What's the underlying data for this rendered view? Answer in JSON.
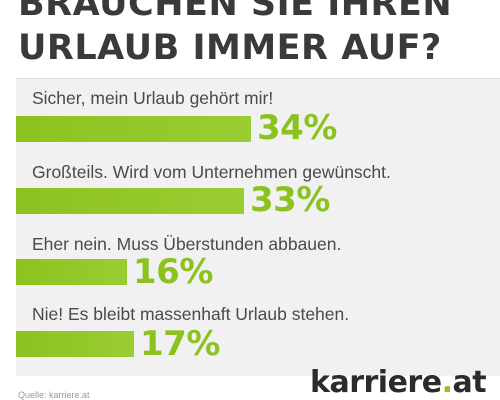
{
  "chart_data": {
    "type": "bar",
    "title": "BRAUCHEN SIE IHREN URLAUB IMMER AUF?",
    "categories": [
      "Sicher, mein Urlaub gehört mir!",
      "Großteils. Wird vom Unternehmen gewünscht.",
      "Eher nein. Muss Überstunden abbauen.",
      "Nie! Es bleibt massenhaft Urlaub stehen."
    ],
    "values": [
      34,
      33,
      16,
      17
    ],
    "value_labels": [
      "34%",
      "33%",
      "16%",
      "17%"
    ],
    "unit": "%",
    "orientation": "horizontal",
    "bar_color": "#8cc21f",
    "label_color": "#8cc21f",
    "grid": false
  },
  "header": {
    "title_line1": "BRAUCHEN SIE IHREN",
    "title_line2": "URLAUB IMMER AUF?"
  },
  "footer": {
    "source": "Quelle: karriere.at",
    "logo_text": "karriere",
    "logo_dot": ".",
    "logo_suffix": "at"
  },
  "colors": {
    "accent": "#8cc21f",
    "title": "#3a3a3a",
    "panel": "#f1f1f1"
  }
}
